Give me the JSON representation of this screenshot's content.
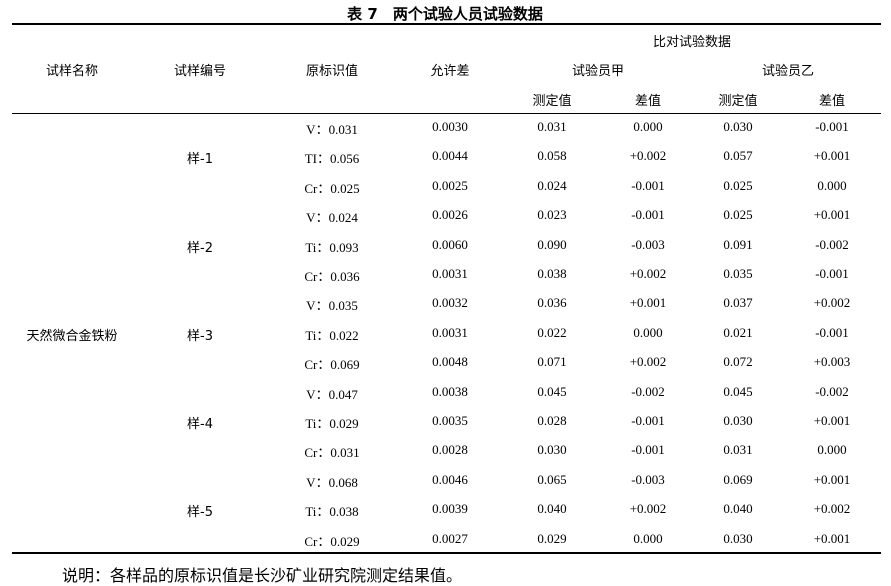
{
  "title": "表 7　两个试验人员试验数据",
  "headers": {
    "sample_name": "试样名称",
    "sample_no": "试样编号",
    "original_value": "原标识值",
    "tolerance": "允许差",
    "comparison": "比对试验数据",
    "tester_a": "试验员甲",
    "tester_b": "试验员乙",
    "measured": "测定值",
    "difference": "差值"
  },
  "material": "天然微合金铁粉",
  "samples": [
    {
      "label": "样-1",
      "rows": [
        [
          "V：0.031",
          "0.0030",
          "0.031",
          "0.000",
          "0.030",
          "-0.001"
        ],
        [
          "TI：0.056",
          "0.0044",
          "0.058",
          "+0.002",
          "0.057",
          "+0.001"
        ],
        [
          "Cr：0.025",
          "0.0025",
          "0.024",
          "-0.001",
          "0.025",
          "0.000"
        ]
      ]
    },
    {
      "label": "样-2",
      "rows": [
        [
          "V：0.024",
          "0.0026",
          "0.023",
          "-0.001",
          "0.025",
          "+0.001"
        ],
        [
          "Ti：0.093",
          "0.0060",
          "0.090",
          "-0.003",
          "0.091",
          "-0.002"
        ],
        [
          "Cr：0.036",
          "0.0031",
          "0.038",
          "+0.002",
          "0.035",
          "-0.001"
        ]
      ]
    },
    {
      "label": "样-3",
      "rows": [
        [
          "V：0.035",
          "0.0032",
          "0.036",
          "+0.001",
          "0.037",
          "+0.002"
        ],
        [
          "Ti：0.022",
          "0.0031",
          "0.022",
          "0.000",
          "0.021",
          "-0.001"
        ],
        [
          "Cr：0.069",
          "0.0048",
          "0.071",
          "+0.002",
          "0.072",
          "+0.003"
        ]
      ]
    },
    {
      "label": "样-4",
      "rows": [
        [
          "V：0.047",
          "0.0038",
          "0.045",
          "-0.002",
          "0.045",
          "-0.002"
        ],
        [
          "Ti：0.029",
          "0.0035",
          "0.028",
          "-0.001",
          "0.030",
          "+0.001"
        ],
        [
          "Cr：0.031",
          "0.0028",
          "0.030",
          "-0.001",
          "0.031",
          "0.000"
        ]
      ]
    },
    {
      "label": "样-5",
      "rows": [
        [
          "V：0.068",
          "0.0046",
          "0.065",
          "-0.003",
          "0.069",
          "+0.001"
        ],
        [
          "Ti：0.038",
          "0.0039",
          "0.040",
          "+0.002",
          "0.040",
          "+0.002"
        ],
        [
          "Cr：0.029",
          "0.0027",
          "0.029",
          "0.000",
          "0.030",
          "+0.001"
        ]
      ]
    }
  ],
  "note": "说明：各样品的原标识值是长沙矿业研究院测定结果值。"
}
